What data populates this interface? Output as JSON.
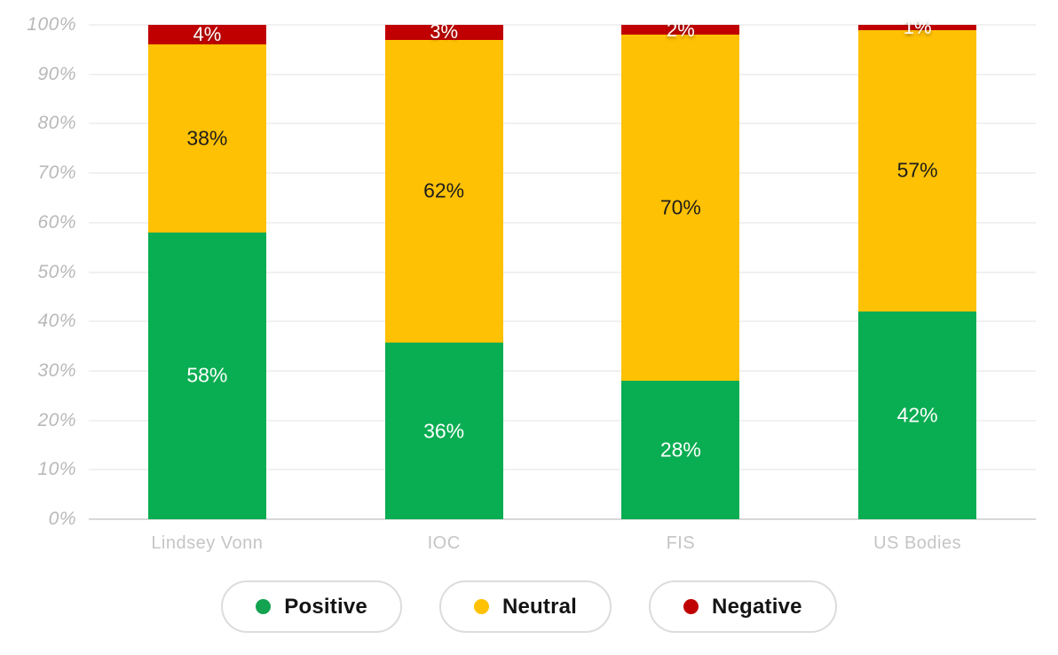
{
  "chart_data": {
    "type": "bar",
    "stacked": true,
    "title": "",
    "categories": [
      "Lindsey Vonn",
      "IOC",
      "FIS",
      "US Bodies"
    ],
    "series": [
      {
        "name": "Positive",
        "color": "#09AD52",
        "label_color": "#ffffff",
        "values": [
          58,
          36,
          28,
          42
        ]
      },
      {
        "name": "Neutral",
        "color": "#FFC103",
        "label_color": "#1d1d1d",
        "values": [
          38,
          62,
          70,
          57
        ]
      },
      {
        "name": "Negative",
        "color": "#C00000",
        "label_color": "#ffffff",
        "values": [
          4,
          3,
          2,
          1
        ]
      }
    ],
    "value_suffix": "%",
    "y_ticks": [
      "0%",
      "10%",
      "20%",
      "30%",
      "40%",
      "50%",
      "60%",
      "70%",
      "80%",
      "90%",
      "100%"
    ],
    "ylim": [
      0,
      100
    ],
    "grid": true,
    "legend_position": "bottom"
  },
  "legend": {
    "items": [
      {
        "label": "Positive",
        "color": "#14A350"
      },
      {
        "label": "Neutral",
        "color": "#FFC103"
      },
      {
        "label": "Negative",
        "color": "#C00000"
      }
    ]
  }
}
